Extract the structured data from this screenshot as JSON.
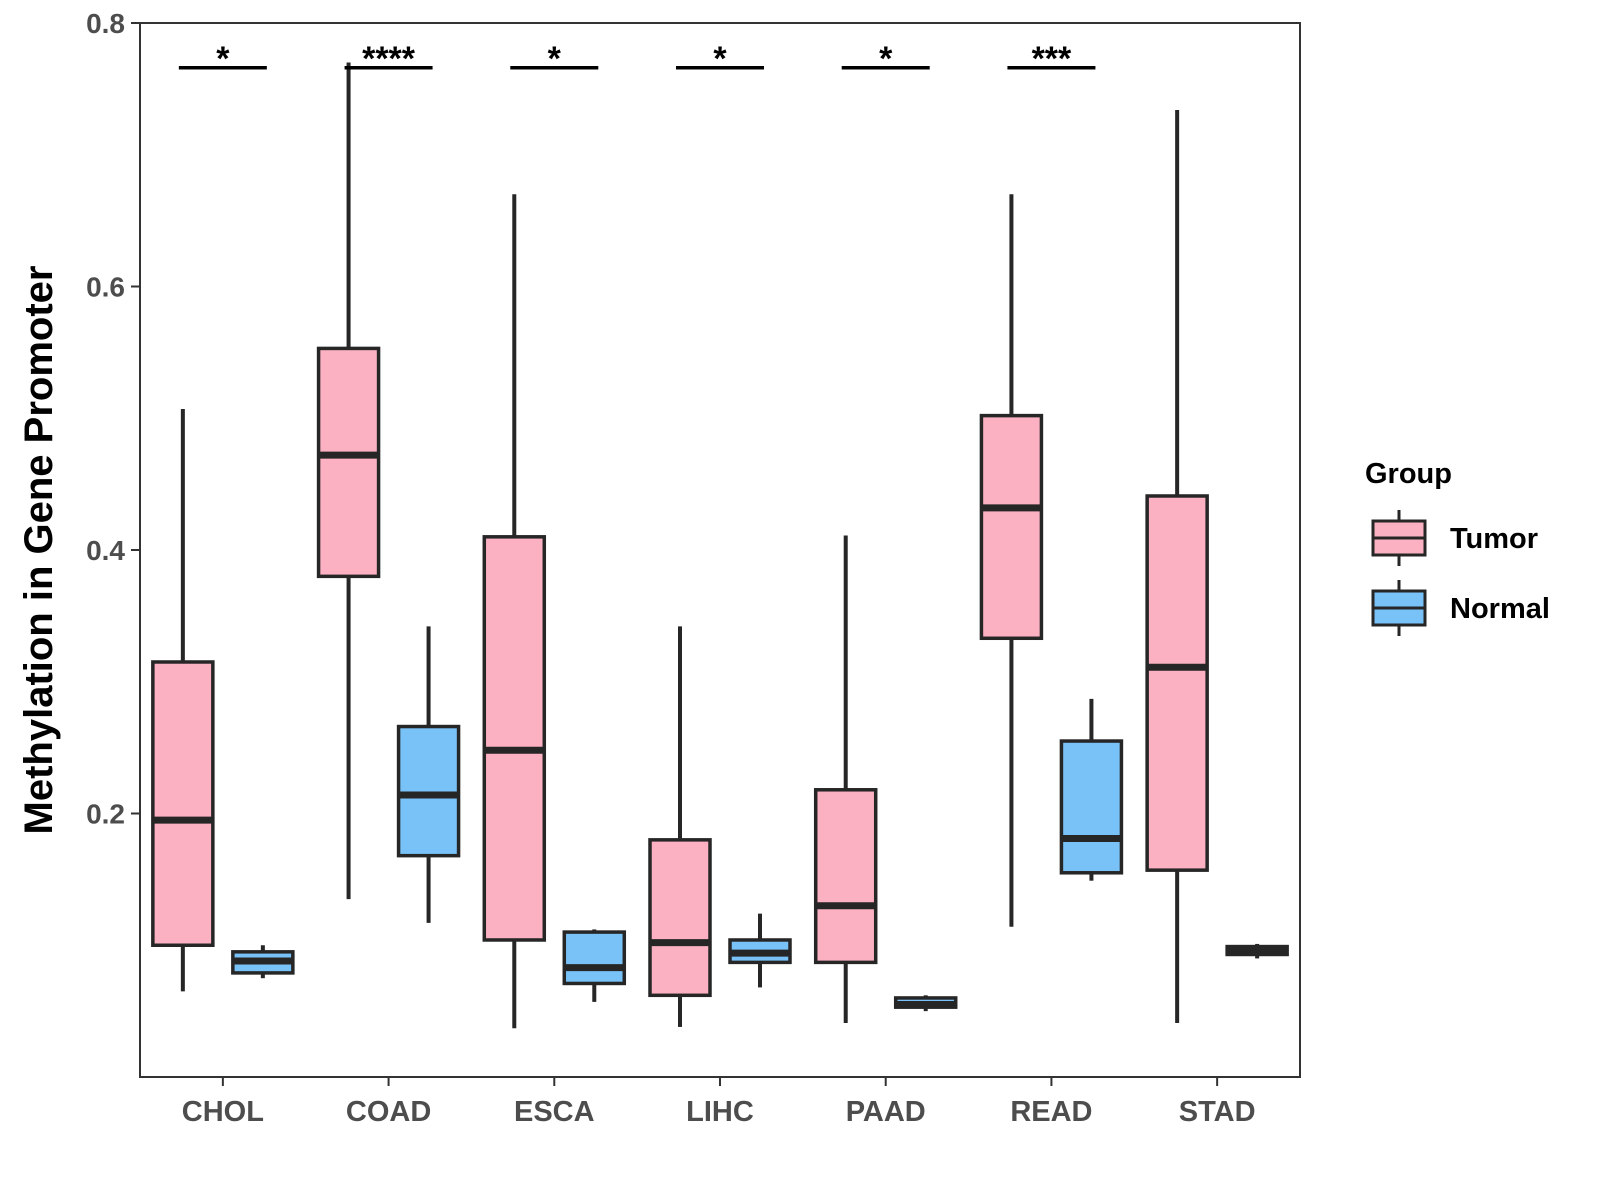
{
  "chart_data": {
    "type": "boxplot",
    "title": "",
    "xlabel": "",
    "ylabel": "Methylation in Gene Promoter",
    "ylim": [
      0.0,
      0.8
    ],
    "yticks": [
      0.2,
      0.4,
      0.6,
      0.8
    ],
    "ytick_labels": [
      "0.2",
      "0.4",
      "0.6",
      "0.8"
    ],
    "categories": [
      "CHOL",
      "COAD",
      "ESCA",
      "LIHC",
      "PAAD",
      "READ",
      "STAD"
    ],
    "legend": {
      "title": "Group",
      "position": "right",
      "entries": [
        {
          "name": "Tumor",
          "color": "#FBB1C2"
        },
        {
          "name": "Normal",
          "color": "#79C2F8"
        }
      ]
    },
    "series": [
      {
        "name": "Tumor",
        "color": "#FBB1C2",
        "boxes": [
          {
            "category": "CHOL",
            "lower_whisker": 0.065,
            "q1": 0.1,
            "median": 0.195,
            "q3": 0.315,
            "upper_whisker": 0.507
          },
          {
            "category": "COAD",
            "lower_whisker": 0.135,
            "q1": 0.38,
            "median": 0.472,
            "q3": 0.553,
            "upper_whisker": 0.77
          },
          {
            "category": "ESCA",
            "lower_whisker": 0.037,
            "q1": 0.104,
            "median": 0.248,
            "q3": 0.41,
            "upper_whisker": 0.67
          },
          {
            "category": "LIHC",
            "lower_whisker": 0.038,
            "q1": 0.062,
            "median": 0.102,
            "q3": 0.18,
            "upper_whisker": 0.342
          },
          {
            "category": "PAAD",
            "lower_whisker": 0.041,
            "q1": 0.087,
            "median": 0.13,
            "q3": 0.218,
            "upper_whisker": 0.411
          },
          {
            "category": "READ",
            "lower_whisker": 0.114,
            "q1": 0.333,
            "median": 0.432,
            "q3": 0.502,
            "upper_whisker": 0.67
          },
          {
            "category": "STAD",
            "lower_whisker": 0.041,
            "q1": 0.157,
            "median": 0.311,
            "q3": 0.441,
            "upper_whisker": 0.734
          }
        ]
      },
      {
        "name": "Normal",
        "color": "#79C2F8",
        "boxes": [
          {
            "category": "CHOL",
            "lower_whisker": 0.075,
            "q1": 0.079,
            "median": 0.088,
            "q3": 0.095,
            "upper_whisker": 0.1
          },
          {
            "category": "COAD",
            "lower_whisker": 0.117,
            "q1": 0.168,
            "median": 0.214,
            "q3": 0.266,
            "upper_whisker": 0.342
          },
          {
            "category": "ESCA",
            "lower_whisker": 0.057,
            "q1": 0.071,
            "median": 0.083,
            "q3": 0.11,
            "upper_whisker": 0.112
          },
          {
            "category": "LIHC",
            "lower_whisker": 0.068,
            "q1": 0.087,
            "median": 0.094,
            "q3": 0.104,
            "upper_whisker": 0.124
          },
          {
            "category": "PAAD",
            "lower_whisker": 0.05,
            "q1": 0.053,
            "median": 0.055,
            "q3": 0.06,
            "upper_whisker": 0.062
          },
          {
            "category": "READ",
            "lower_whisker": 0.149,
            "q1": 0.155,
            "median": 0.181,
            "q3": 0.255,
            "upper_whisker": 0.287
          },
          {
            "category": "STAD",
            "lower_whisker": 0.09,
            "q1": 0.093,
            "median": 0.096,
            "q3": 0.099,
            "upper_whisker": 0.101
          }
        ]
      }
    ],
    "significance": [
      {
        "category": "CHOL",
        "label": "*",
        "y": 0.766
      },
      {
        "category": "COAD",
        "label": "****",
        "y": 0.766
      },
      {
        "category": "ESCA",
        "label": "*",
        "y": 0.766
      },
      {
        "category": "LIHC",
        "label": "*",
        "y": 0.766
      },
      {
        "category": "PAAD",
        "label": "*",
        "y": 0.766
      },
      {
        "category": "READ",
        "label": "***",
        "y": 0.766
      }
    ]
  }
}
